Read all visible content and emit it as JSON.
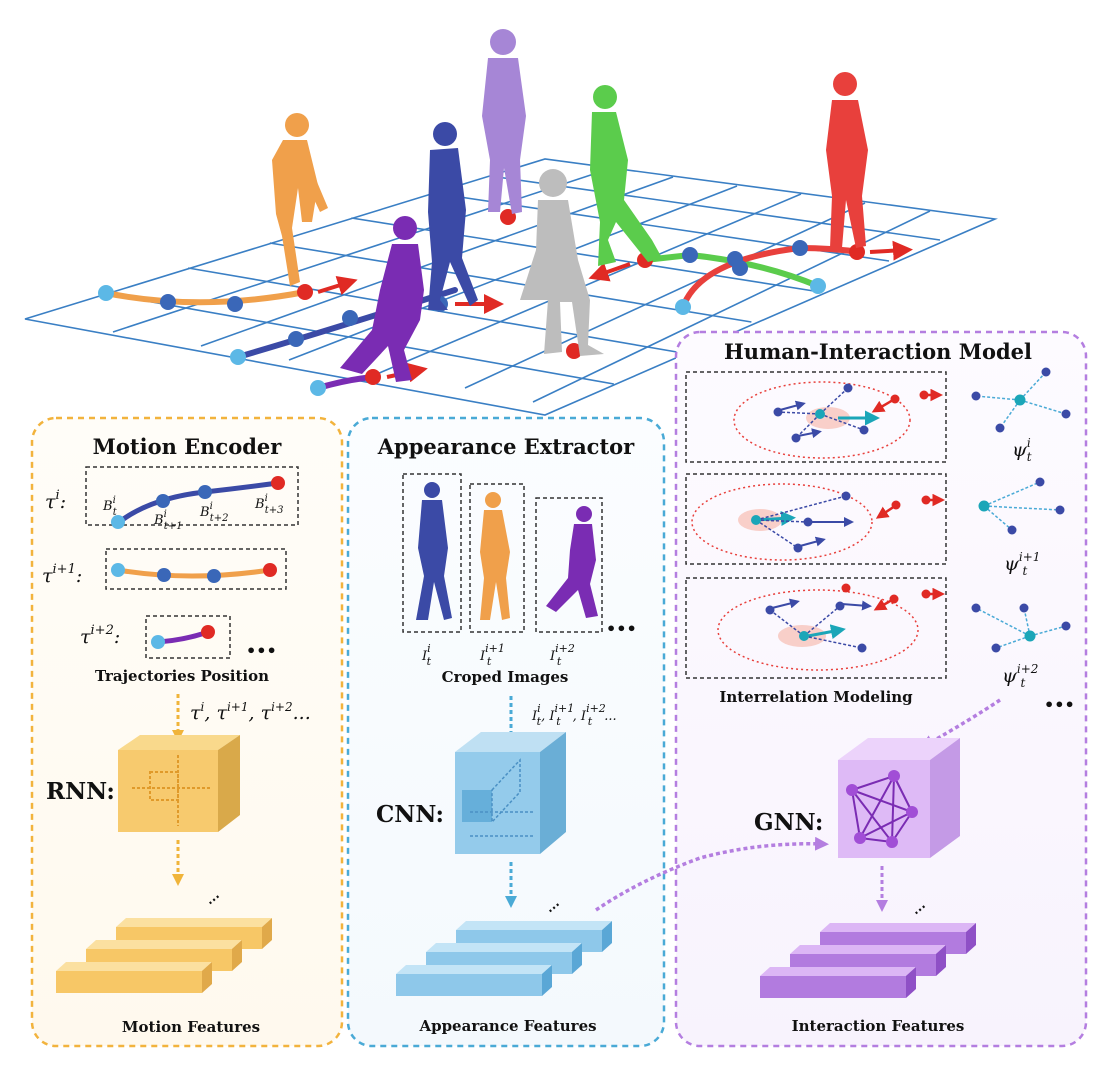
{
  "panels": {
    "motion": {
      "title": "Motion Encoder",
      "caption": "Trajectories Position",
      "net": "RNN:",
      "features": "Motion Features"
    },
    "appearance": {
      "title": "Appearance Extractor",
      "caption": "Croped Images",
      "net": "CNN:",
      "features": "Appearance Features"
    },
    "interaction": {
      "title": "Human-Interaction Model",
      "caption": "Interrelation Modeling",
      "net": "GNN:",
      "features": "Interaction Features"
    }
  },
  "motion_labels": {
    "tau0": "τ",
    "tau0_sup": "i",
    "tau0_colon": ":",
    "tau1": "τ",
    "tau1_sup": "i+1",
    "tau1_colon": ":",
    "tau2": "τ",
    "tau2_sup": "i+2",
    "tau2_colon": ":",
    "b0": "B",
    "b0_sup": "i",
    "b0_sub": "t",
    "b1": "B",
    "b1_sup": "i",
    "b1_sub": "t+1",
    "b2": "B",
    "b2_sup": "i",
    "b2_sub": "t+2",
    "b3": "B",
    "b3_sup": "i",
    "b3_sub": "t+3",
    "seq_a": "τ",
    "seq_a_sup": "i",
    "seq_b": ", τ",
    "seq_b_sup": "i+1",
    "seq_c": ", τ",
    "seq_c_sup": "i+2",
    "seq_tail": "..."
  },
  "appearance_labels": {
    "i0": "I",
    "i0_sup": "i",
    "i0_sub": "t",
    "i1": "I",
    "i1_sup": "i+1",
    "i1_sub": "t",
    "i2": "I",
    "i2_sup": "i+2",
    "i2_sub": "t",
    "seq_a": "I",
    "seq_a_sup": "i",
    "seq_a_sub": "t",
    "seq_b": ", I",
    "seq_b_sup": "i+1",
    "seq_b_sub": "t",
    "seq_c": ", I",
    "seq_c_sup": "i+2",
    "seq_c_sub": "t",
    "seq_tail": "..."
  },
  "interaction_labels": {
    "p0": "ψ",
    "p0_sup": "i",
    "p0_sub": "t",
    "p1": "ψ",
    "p1_sup": "i+1",
    "p1_sub": "t",
    "p2": "ψ",
    "p2_sup": "i+2",
    "p2_sub": "t"
  },
  "ellipsis": "•••",
  "colors": {
    "orange": "#f0a04b",
    "navy": "#3b4aa6",
    "lavender": "#a686d6",
    "green": "#5bcc4c",
    "gray": "#bdbdbd",
    "purple": "#7a2cb3",
    "red": "#e8403c",
    "grid": "#3a7fc4",
    "dot_blue": "#3a67b8",
    "dot_light": "#5cb8e6",
    "dot_red": "#e02a24",
    "motion_border": "#f2b33d",
    "appear_border": "#4aaad6",
    "inter_border": "#b47ee0",
    "rnn": "#f7c766",
    "cnn": "#8ec8ea",
    "gnn": "#dcb6f5"
  }
}
